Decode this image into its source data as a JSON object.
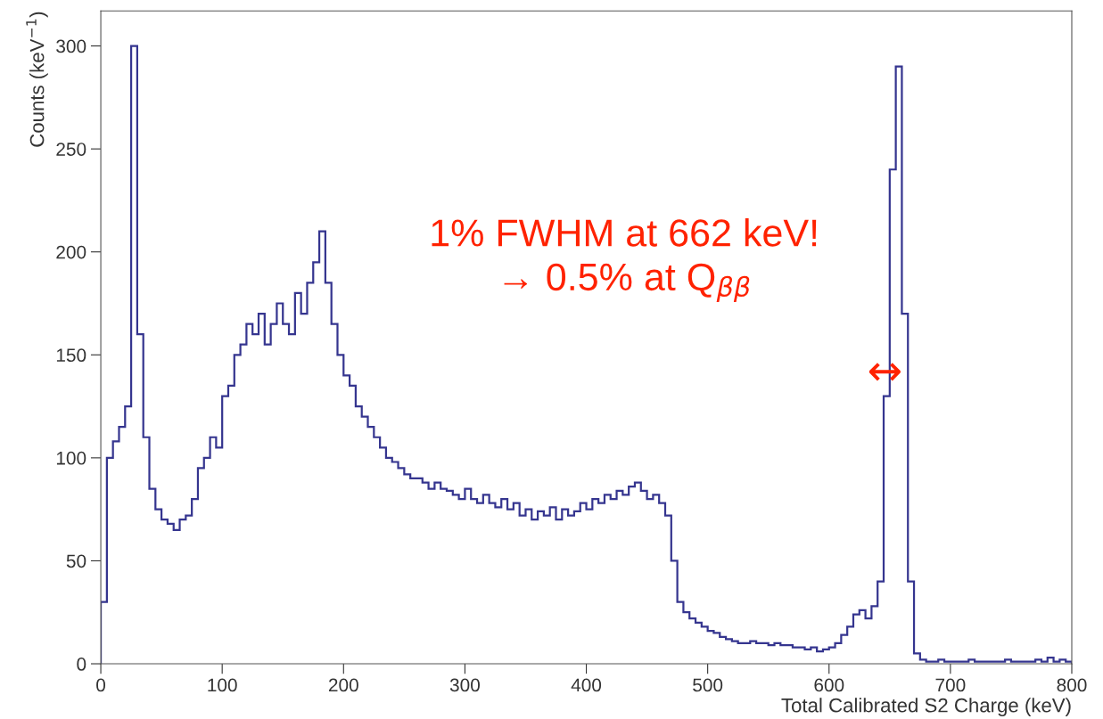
{
  "chart_data": {
    "type": "histogram",
    "xlabel": "Total Calibrated S2 Charge (keV)",
    "ylabel": "Counts (keV$^{−1}$)",
    "bins": [
      0,
      5,
      10,
      15,
      20,
      25,
      30,
      35,
      40,
      45,
      50,
      55,
      60,
      65,
      70,
      75,
      80,
      85,
      90,
      95,
      100,
      105,
      110,
      115,
      120,
      125,
      130,
      135,
      140,
      145,
      150,
      155,
      160,
      165,
      170,
      175,
      180,
      185,
      190,
      195,
      200,
      205,
      210,
      215,
      220,
      225,
      230,
      235,
      240,
      245,
      250,
      255,
      260,
      265,
      270,
      275,
      280,
      285,
      290,
      295,
      300,
      305,
      310,
      315,
      320,
      325,
      330,
      335,
      340,
      345,
      350,
      355,
      360,
      365,
      370,
      375,
      380,
      385,
      390,
      395,
      400,
      405,
      410,
      415,
      420,
      425,
      430,
      435,
      440,
      445,
      450,
      455,
      460,
      465,
      470,
      475,
      480,
      485,
      490,
      495,
      500,
      505,
      510,
      515,
      520,
      525,
      530,
      535,
      540,
      545,
      550,
      555,
      560,
      565,
      570,
      575,
      580,
      585,
      590,
      595,
      600,
      605,
      610,
      615,
      620,
      625,
      630,
      635,
      640,
      645,
      650,
      655,
      660,
      665,
      670,
      675,
      680,
      685,
      690,
      695,
      700,
      705,
      710,
      715,
      720,
      725,
      730,
      735,
      740,
      745,
      750,
      755,
      760,
      765,
      770,
      775,
      780,
      785,
      790,
      795,
      800
    ],
    "values": [
      30,
      100,
      108,
      115,
      125,
      300,
      160,
      110,
      85,
      75,
      70,
      68,
      65,
      70,
      72,
      80,
      95,
      100,
      110,
      105,
      130,
      135,
      150,
      155,
      165,
      160,
      170,
      155,
      165,
      175,
      165,
      160,
      180,
      170,
      185,
      195,
      210,
      185,
      165,
      150,
      140,
      135,
      125,
      120,
      115,
      110,
      105,
      100,
      98,
      95,
      92,
      90,
      90,
      88,
      85,
      88,
      85,
      84,
      82,
      80,
      85,
      80,
      78,
      82,
      78,
      76,
      80,
      75,
      78,
      72,
      75,
      70,
      74,
      72,
      76,
      70,
      75,
      72,
      74,
      78,
      75,
      80,
      78,
      82,
      80,
      84,
      82,
      86,
      88,
      84,
      80,
      82,
      78,
      72,
      50,
      30,
      25,
      22,
      20,
      18,
      16,
      15,
      13,
      12,
      11,
      10,
      10,
      11,
      10,
      10,
      9,
      10,
      9,
      9,
      8,
      8,
      7,
      8,
      6,
      7,
      8,
      10,
      14,
      18,
      24,
      26,
      22,
      28,
      40,
      130,
      240,
      290,
      170,
      40,
      5,
      2,
      1,
      1,
      2,
      1,
      1,
      1,
      1,
      2,
      1,
      1,
      1,
      1,
      1,
      2,
      1,
      1,
      1,
      1,
      2,
      1,
      3,
      1,
      2,
      1
    ],
    "color": "#35358f",
    "xlim": [
      0,
      800
    ],
    "ylim": [
      0,
      317
    ],
    "xticks": [
      0,
      100,
      200,
      300,
      400,
      500,
      600,
      700,
      800
    ],
    "yticks": [
      0,
      50,
      100,
      150,
      200,
      250,
      300
    ],
    "grid": false,
    "legend": false,
    "annotations": [
      "1% FWHM at 662 keV!\n→ 0.5% at Q$_{ββ}$",
      {
        "text": "↔",
        "x": 646,
        "y": 141
      }
    ]
  }
}
